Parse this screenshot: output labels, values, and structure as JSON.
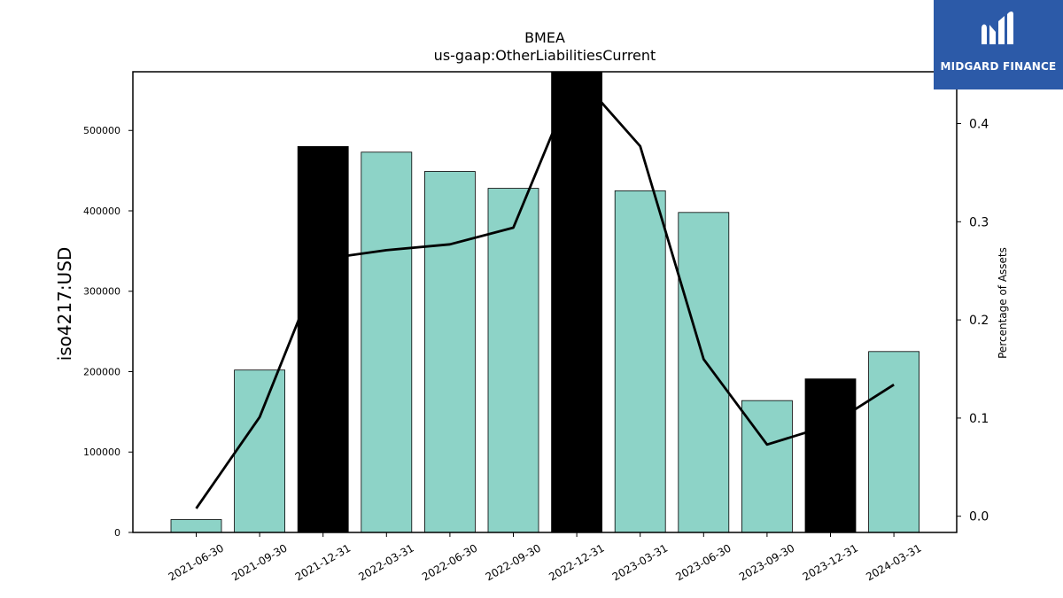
{
  "chart_data": {
    "type": "bar",
    "title": "BMEA",
    "subtitle": "us-gaap:OtherLiabilitiesCurrent",
    "ylabel": "iso4217:USD",
    "y2label": "Percentage of Assets",
    "categories": [
      "2021-06-30",
      "2021-09-30",
      "2021-12-31",
      "2022-03-31",
      "2022-06-30",
      "2022-09-30",
      "2022-12-31",
      "2023-03-31",
      "2023-06-30",
      "2023-09-30",
      "2023-12-31",
      "2024-03-31"
    ],
    "values": [
      16000,
      202000,
      480000,
      473000,
      449000,
      428000,
      573000,
      425000,
      398000,
      164000,
      191000,
      225000
    ],
    "bar_colors": [
      "#8dd3c7",
      "#8dd3c7",
      "#000000",
      "#8dd3c7",
      "#8dd3c7",
      "#8dd3c7",
      "#000000",
      "#8dd3c7",
      "#8dd3c7",
      "#8dd3c7",
      "#000000",
      "#8dd3c7"
    ],
    "line_series": {
      "axis": "secondary",
      "values": [
        0.008,
        0.101,
        0.262,
        0.271,
        0.277,
        0.294,
        0.45,
        0.377,
        0.16,
        0.073,
        0.093,
        0.134
      ],
      "color": "#000000"
    },
    "ylim": [
      0,
      573000
    ],
    "y2lim": [
      -0.0165,
      0.4528
    ],
    "yticks": [
      0,
      100000,
      200000,
      300000,
      400000,
      500000
    ],
    "y2ticks": [
      0.0,
      0.1,
      0.2,
      0.3,
      0.4
    ],
    "grid": false
  },
  "logo": {
    "text": "MIDGARD FINANCE"
  }
}
